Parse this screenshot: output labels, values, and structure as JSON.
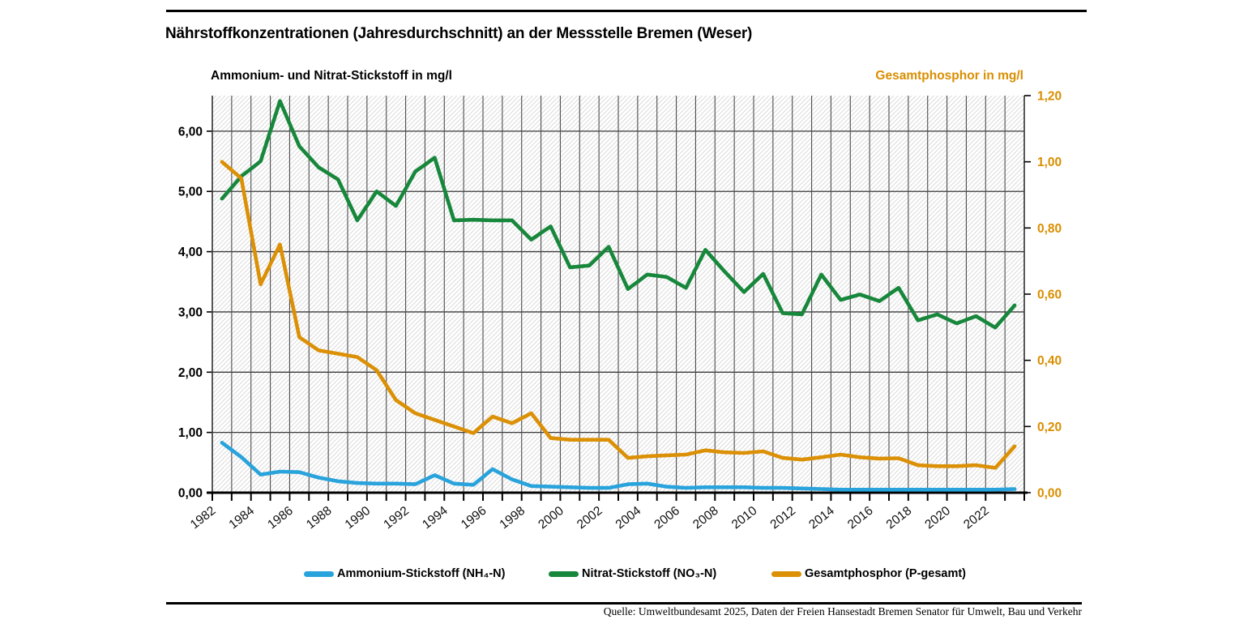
{
  "header": {
    "title": "Nährstoffkonzentrationen (Jahresdurchschnitt) an der Messstelle Bremen (Weser)"
  },
  "axes": {
    "left_title": "Ammonium- und Nitrat-Stickstoff in mg/l",
    "right_title": "Gesamtphosphor in mg/l",
    "left_tick_labels": [
      "0,00",
      "1,00",
      "2,00",
      "3,00",
      "4,00",
      "5,00",
      "6,00"
    ],
    "right_tick_labels": [
      "0,00",
      "0,20",
      "0,40",
      "0,60",
      "0,80",
      "1,00",
      "1,20"
    ]
  },
  "legend": [
    {
      "key": "ammonium",
      "label": "Ammonium-Stickstoff (NH₄-N)",
      "color": "#29A3DC"
    },
    {
      "key": "nitrat",
      "label": "Nitrat-Stickstoff (NO₃-N)",
      "color": "#17873B"
    },
    {
      "key": "phosphor",
      "label": "Gesamtphosphor (P-gesamt)",
      "color": "#DB9005"
    }
  ],
  "footer": {
    "source": "Quelle: Umweltbundesamt 2025, Daten der Freien Hansestadt Bremen Senator für Umwelt, Bau und Verkehr"
  },
  "colors": {
    "ammonium": "#29A3DC",
    "nitrat": "#17873B",
    "phosphor": "#DB9005",
    "right_axis_text": "#D98E00",
    "hatch": "#DBDBDB",
    "grid_vertical": "#4D4D4D",
    "grid_horizontal": "#3A3A3A",
    "axis_baseline": "#000000"
  },
  "chart_data": {
    "type": "line",
    "title": "Nährstoffkonzentrationen (Jahresdurchschnitt) an der Messstelle Bremen (Weser)",
    "x": [
      1982,
      1983,
      1984,
      1985,
      1986,
      1987,
      1988,
      1989,
      1990,
      1991,
      1992,
      1993,
      1994,
      1995,
      1996,
      1997,
      1998,
      1999,
      2000,
      2001,
      2002,
      2003,
      2004,
      2005,
      2006,
      2007,
      2008,
      2009,
      2010,
      2011,
      2012,
      2013,
      2014,
      2015,
      2016,
      2017,
      2018,
      2019,
      2020,
      2021,
      2022,
      2023
    ],
    "x_tick_labels": [
      "1982",
      "1984",
      "1986",
      "1988",
      "1990",
      "1992",
      "1994",
      "1996",
      "1998",
      "2000",
      "2002",
      "2004",
      "2006",
      "2008",
      "2010",
      "2012",
      "2014",
      "2016",
      "2018",
      "2020",
      "2022"
    ],
    "left_axis": {
      "label": "Ammonium- und Nitrat-Stickstoff in mg/l",
      "ticks": [
        0,
        1,
        2,
        3,
        4,
        5,
        6
      ],
      "max": 6.59,
      "grid": true
    },
    "right_axis": {
      "label": "Gesamtphosphor in mg/l",
      "ticks": [
        0,
        0.2,
        0.4,
        0.6,
        0.8,
        1.0,
        1.2
      ],
      "max": 1.2
    },
    "series": [
      {
        "key": "nitrat",
        "name": "Nitrat-Stickstoff (NO₃-N)",
        "axis": "left",
        "color": "#17873B",
        "values": [
          4.88,
          5.25,
          5.5,
          6.5,
          5.75,
          5.4,
          5.2,
          4.52,
          5.0,
          4.76,
          5.33,
          5.56,
          4.52,
          4.53,
          4.52,
          4.52,
          4.2,
          4.42,
          3.74,
          3.77,
          4.08,
          3.38,
          3.62,
          3.58,
          3.4,
          4.03,
          3.67,
          3.33,
          3.63,
          2.98,
          2.96,
          3.62,
          3.2,
          3.29,
          3.18,
          3.4,
          2.86,
          2.96,
          2.81,
          2.93,
          2.74,
          3.11
        ]
      },
      {
        "key": "phosphor",
        "name": "Gesamtphosphor (P-gesamt)",
        "axis": "right",
        "color": "#DB9005",
        "values": [
          1.0,
          0.95,
          0.63,
          0.75,
          0.47,
          0.43,
          0.42,
          0.41,
          0.37,
          0.28,
          0.24,
          0.22,
          0.2,
          0.18,
          0.23,
          0.21,
          0.24,
          0.165,
          0.16,
          0.16,
          0.16,
          0.105,
          0.11,
          0.113,
          0.115,
          0.128,
          0.122,
          0.12,
          0.125,
          0.105,
          0.1,
          0.107,
          0.115,
          0.107,
          0.103,
          0.104,
          0.083,
          0.08,
          0.08,
          0.083,
          0.075,
          0.14
        ]
      },
      {
        "key": "ammonium",
        "name": "Ammonium-Stickstoff (NH₄-N)",
        "axis": "left",
        "color": "#29A3DC",
        "values": [
          0.83,
          0.59,
          0.3,
          0.35,
          0.34,
          0.25,
          0.19,
          0.16,
          0.15,
          0.15,
          0.14,
          0.29,
          0.15,
          0.13,
          0.39,
          0.22,
          0.11,
          0.1,
          0.09,
          0.08,
          0.08,
          0.14,
          0.15,
          0.1,
          0.08,
          0.09,
          0.09,
          0.09,
          0.08,
          0.08,
          0.07,
          0.06,
          0.05,
          0.05,
          0.05,
          0.05,
          0.05,
          0.05,
          0.05,
          0.05,
          0.05,
          0.06
        ]
      }
    ]
  }
}
